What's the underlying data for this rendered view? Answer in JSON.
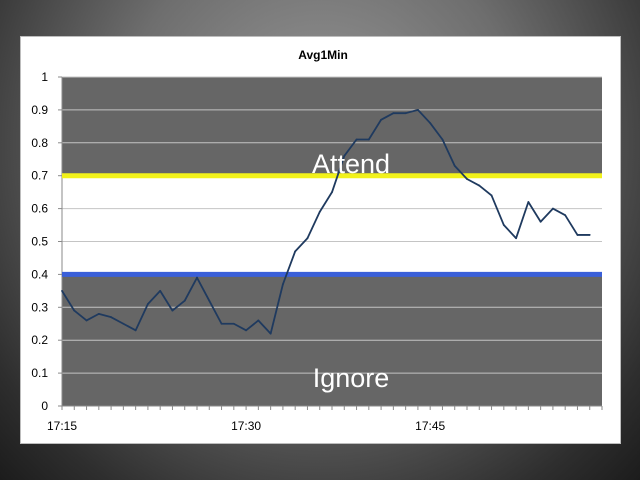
{
  "chart_data": {
    "type": "line",
    "title": "Avg1Min",
    "xlabel": "",
    "ylabel": "",
    "ylim": [
      0,
      1
    ],
    "yticks": [
      0,
      0.1,
      0.2,
      0.3,
      0.4,
      0.5,
      0.6,
      0.7,
      0.8,
      0.9,
      1
    ],
    "ytick_labels": [
      "0",
      "0.1",
      "0.2",
      "0.3",
      "0.4",
      "0.5",
      "0.6",
      "0.7",
      "0.8",
      "0.9",
      "1"
    ],
    "xlim": [
      "17:15",
      "17:59"
    ],
    "xtick_labels": [
      "17:15",
      "17:30",
      "17:45"
    ],
    "grid": true,
    "x": [
      "17:15",
      "17:16",
      "17:17",
      "17:18",
      "17:19",
      "17:20",
      "17:21",
      "17:22",
      "17:23",
      "17:24",
      "17:25",
      "17:26",
      "17:27",
      "17:28",
      "17:29",
      "17:30",
      "17:31",
      "17:32",
      "17:33",
      "17:34",
      "17:35",
      "17:36",
      "17:37",
      "17:38",
      "17:39",
      "17:40",
      "17:41",
      "17:42",
      "17:43",
      "17:44",
      "17:45",
      "17:46",
      "17:47",
      "17:48",
      "17:49",
      "17:50",
      "17:51",
      "17:52",
      "17:53",
      "17:54",
      "17:55",
      "17:56",
      "17:57",
      "17:58"
    ],
    "series": [
      {
        "values": [
          0.35,
          0.29,
          0.26,
          0.28,
          0.27,
          0.25,
          0.23,
          0.31,
          0.35,
          0.29,
          0.32,
          0.39,
          0.32,
          0.25,
          0.25,
          0.23,
          0.26,
          0.22,
          0.37,
          0.47,
          0.51,
          0.59,
          0.65,
          0.76,
          0.81,
          0.81,
          0.87,
          0.89,
          0.89,
          0.9,
          0.86,
          0.81,
          0.73,
          0.69,
          0.67,
          0.64,
          0.55,
          0.51,
          0.62,
          0.56,
          0.6,
          0.58,
          0.52,
          0.52
        ],
        "color": "#1f3a5f"
      }
    ],
    "thresholds": [
      {
        "value": 0.7,
        "color": "#f2f21a"
      },
      {
        "value": 0.4,
        "color": "#3a5fd9"
      }
    ],
    "zones": [
      {
        "label": "Attend",
        "range": [
          0.7,
          1.0
        ],
        "color": "#666666"
      },
      {
        "label": "Ignore",
        "range": [
          0,
          0.4
        ],
        "color": "#666666"
      }
    ],
    "plot_background": "#ffffff"
  }
}
